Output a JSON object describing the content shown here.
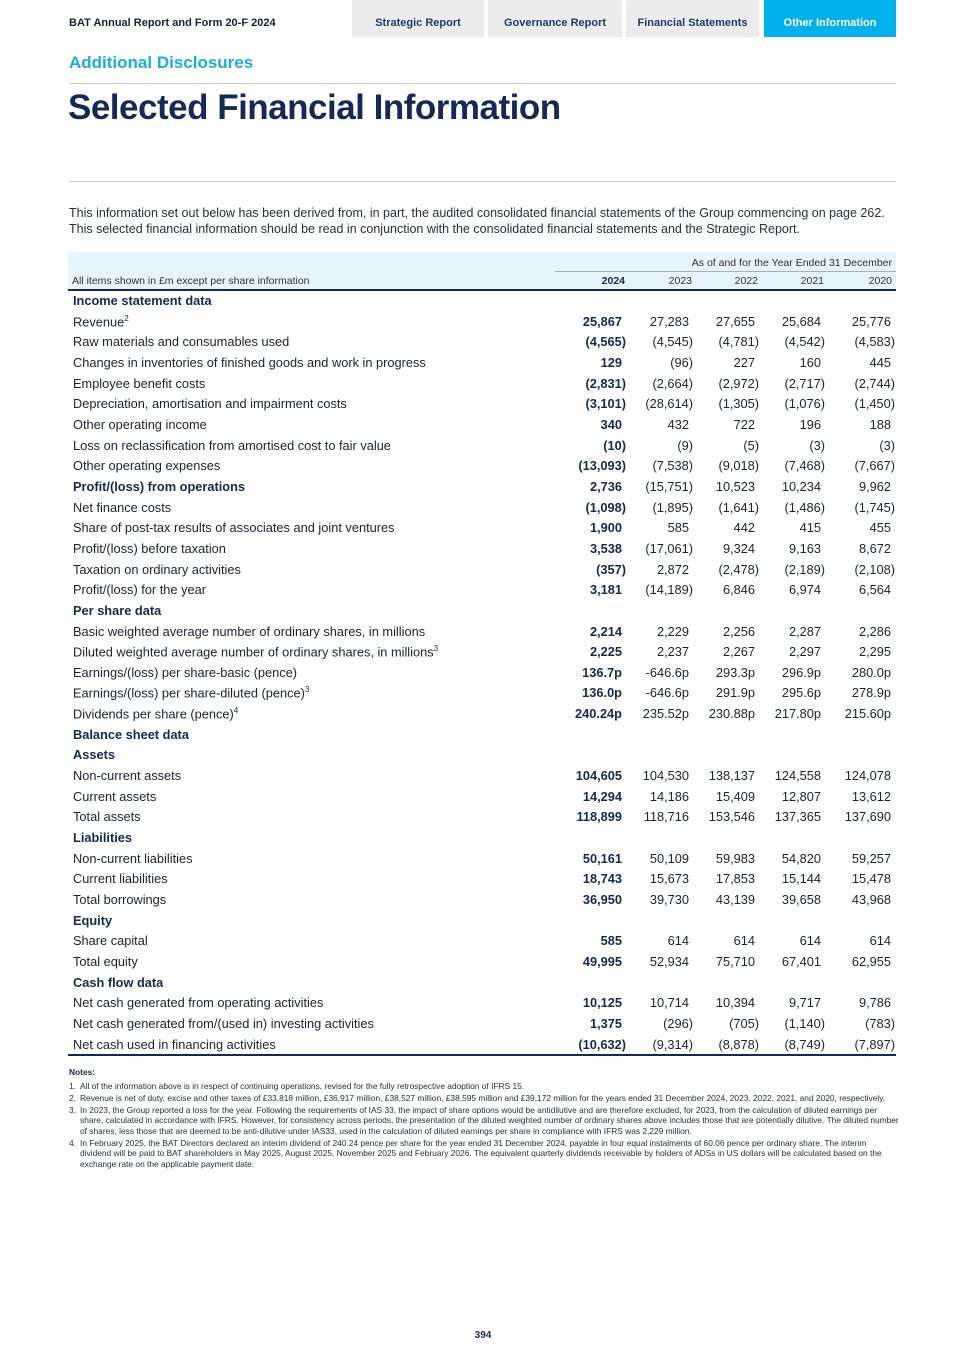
{
  "header": {
    "brand": "BAT Annual Report and Form 20-F 2024",
    "tabs": [
      {
        "label": "Strategic Report"
      },
      {
        "label": "Governance Report"
      },
      {
        "label": "Financial Statements"
      },
      {
        "label": "Other Information",
        "active": true
      }
    ]
  },
  "section": "Additional Disclosures",
  "title": "Selected Financial Information",
  "intro": "This information set out below has been derived from, in part, the audited consolidated financial statements of the Group commencing on page 262. This selected financial information should be read in conjunction with the consolidated financial statements and the Strategic Report.",
  "table": {
    "as_of": "As of and for the Year Ended 31 December",
    "units_label": "All items shown in £m except per share information",
    "years": [
      "2024",
      "2023",
      "2022",
      "2021",
      "2020"
    ],
    "rows": [
      {
        "label": "Income statement data",
        "type": "sec"
      },
      {
        "label": "Revenue",
        "sup": "2",
        "values": [
          "25,867",
          "27,283",
          "27,655",
          "25,684",
          "25,776"
        ]
      },
      {
        "label": "Raw materials and consumables used",
        "values": [
          "(4,565)",
          "(4,545)",
          "(4,781)",
          "(4,542)",
          "(4,583)"
        ]
      },
      {
        "label": "Changes in inventories of finished goods and work in progress",
        "values": [
          "129",
          "(96)",
          "227",
          "160",
          "445"
        ]
      },
      {
        "label": "Employee benefit costs",
        "values": [
          "(2,831)",
          "(2,664)",
          "(2,972)",
          "(2,717)",
          "(2,744)"
        ]
      },
      {
        "label": "Depreciation, amortisation and impairment costs",
        "values": [
          "(3,101)",
          "(28,614)",
          "(1,305)",
          "(1,076)",
          "(1,450)"
        ]
      },
      {
        "label": "Other operating income",
        "values": [
          "340",
          "432",
          "722",
          "196",
          "188"
        ]
      },
      {
        "label": "Loss on reclassification from amortised cost to fair value",
        "values": [
          "(10)",
          "(9)",
          "(5)",
          "(3)",
          "(3)"
        ]
      },
      {
        "label": "Other operating expenses",
        "values": [
          "(13,093)",
          "(7,538)",
          "(9,018)",
          "(7,468)",
          "(7,667)"
        ]
      },
      {
        "label": "Profit/(loss) from operations",
        "type": "bold",
        "values": [
          "2,736",
          "(15,751)",
          "10,523",
          "10,234",
          "9,962"
        ]
      },
      {
        "label": "Net finance costs",
        "values": [
          "(1,098)",
          "(1,895)",
          "(1,641)",
          "(1,486)",
          "(1,745)"
        ]
      },
      {
        "label": "Share of post-tax results of associates and joint ventures",
        "values": [
          "1,900",
          "585",
          "442",
          "415",
          "455"
        ]
      },
      {
        "label": "Profit/(loss) before taxation",
        "values": [
          "3,538",
          "(17,061)",
          "9,324",
          "9,163",
          "8,672"
        ]
      },
      {
        "label": "Taxation on ordinary activities",
        "values": [
          "(357)",
          "2,872",
          "(2,478)",
          "(2,189)",
          "(2,108)"
        ]
      },
      {
        "label": "Profit/(loss) for the year",
        "values": [
          "3,181",
          "(14,189)",
          "6,846",
          "6,974",
          "6,564"
        ]
      },
      {
        "label": "Per share data",
        "type": "sec"
      },
      {
        "label": "Basic weighted average number of ordinary shares, in millions",
        "values": [
          "2,214",
          "2,229",
          "2,256",
          "2,287",
          "2,286"
        ]
      },
      {
        "label": "Diluted weighted average number of ordinary shares, in millions",
        "sup": "3",
        "values": [
          "2,225",
          "2,237",
          "2,267",
          "2,297",
          "2,295"
        ]
      },
      {
        "label": "Earnings/(loss) per share-basic (pence)",
        "values": [
          "136.7p",
          "-646.6p",
          "293.3p",
          "296.9p",
          "280.0p"
        ]
      },
      {
        "label": "Earnings/(loss) per share-diluted (pence)",
        "sup": "3",
        "values": [
          "136.0p",
          "-646.6p",
          "291.9p",
          "295.6p",
          "278.9p"
        ]
      },
      {
        "label": "Dividends per share (pence)",
        "sup": "4",
        "values": [
          "240.24p",
          "235.52p",
          "230.88p",
          "217.80p",
          "215.60p"
        ]
      },
      {
        "label": "Balance sheet data",
        "type": "sec"
      },
      {
        "label": "Assets",
        "type": "sec"
      },
      {
        "label": "Non-current assets",
        "values": [
          "104,605",
          "104,530",
          "138,137",
          "124,558",
          "124,078"
        ]
      },
      {
        "label": "Current assets",
        "values": [
          "14,294",
          "14,186",
          "15,409",
          "12,807",
          "13,612"
        ]
      },
      {
        "label": "Total assets",
        "values": [
          "118,899",
          "118,716",
          "153,546",
          "137,365",
          "137,690"
        ]
      },
      {
        "label": "Liabilities",
        "type": "sec"
      },
      {
        "label": "Non-current liabilities",
        "values": [
          "50,161",
          "50,109",
          "59,983",
          "54,820",
          "59,257"
        ]
      },
      {
        "label": "Current liabilities",
        "values": [
          "18,743",
          "15,673",
          "17,853",
          "15,144",
          "15,478"
        ]
      },
      {
        "label": "Total borrowings",
        "values": [
          "36,950",
          "39,730",
          "43,139",
          "39,658",
          "43,968"
        ]
      },
      {
        "label": "Equity",
        "type": "sec"
      },
      {
        "label": "Share capital",
        "values": [
          "585",
          "614",
          "614",
          "614",
          "614"
        ]
      },
      {
        "label": "Total equity",
        "values": [
          "49,995",
          "52,934",
          "75,710",
          "67,401",
          "62,955"
        ]
      },
      {
        "label": "Cash flow data",
        "type": "sec"
      },
      {
        "label": "Net cash generated from operating activities",
        "values": [
          "10,125",
          "10,714",
          "10,394",
          "9,717",
          "9,786"
        ]
      },
      {
        "label": "Net cash generated from/(used in) investing activities",
        "values": [
          "1,375",
          "(296)",
          "(705)",
          "(1,140)",
          "(783)"
        ]
      },
      {
        "label": "Net cash used in financing activities",
        "values": [
          "(10,632)",
          "(9,314)",
          "(8,878)",
          "(8,749)",
          "(7,897)"
        ]
      }
    ]
  },
  "notes": {
    "heading": "Notes:",
    "items": [
      {
        "n": "1.",
        "text": "All of the information above is in respect of continuing operations, revised for the fully retrospective adoption of IFRS 15."
      },
      {
        "n": "2.",
        "text": "Revenue is net of duty, excise and other taxes of £33,818 million, £36,917 million, £38,527 million, £38,595 million and £39,172 million for the years ended 31 December 2024, 2023, 2022, 2021, and 2020, respectively."
      },
      {
        "n": "3.",
        "text": "In 2023, the Group reported a loss for the year. Following the requirements of IAS 33, the impact of share options would be antidilutive and are therefore excluded, for 2023, from the calculation of diluted earnings per share, calculated in accordance with IFRS. However, for consistency across periods, the presentation of the diluted weighted number of ordinary shares above includes those that are potentially dilutive. The diluted number of shares, less those that are deemed to be anti-dilutive under IAS33, used in the calculation of diluted earnings per share in compliance with IFRS was 2,229 million."
      },
      {
        "n": "4.",
        "text": "In February 2025, the BAT Directors declared an interim dividend of 240.24 pence per share for the year ended 31 December 2024, payable in four equal instalments of 60.06 pence per ordinary share. The interim dividend will be paid to BAT shareholders in May 2025, August 2025, November 2025 and February 2026. The equivalent quarterly dividends receivable by holders of ADSs in US dollars will be calculated based on the exchange rate on the applicable payment date."
      }
    ]
  },
  "page_number": "394"
}
